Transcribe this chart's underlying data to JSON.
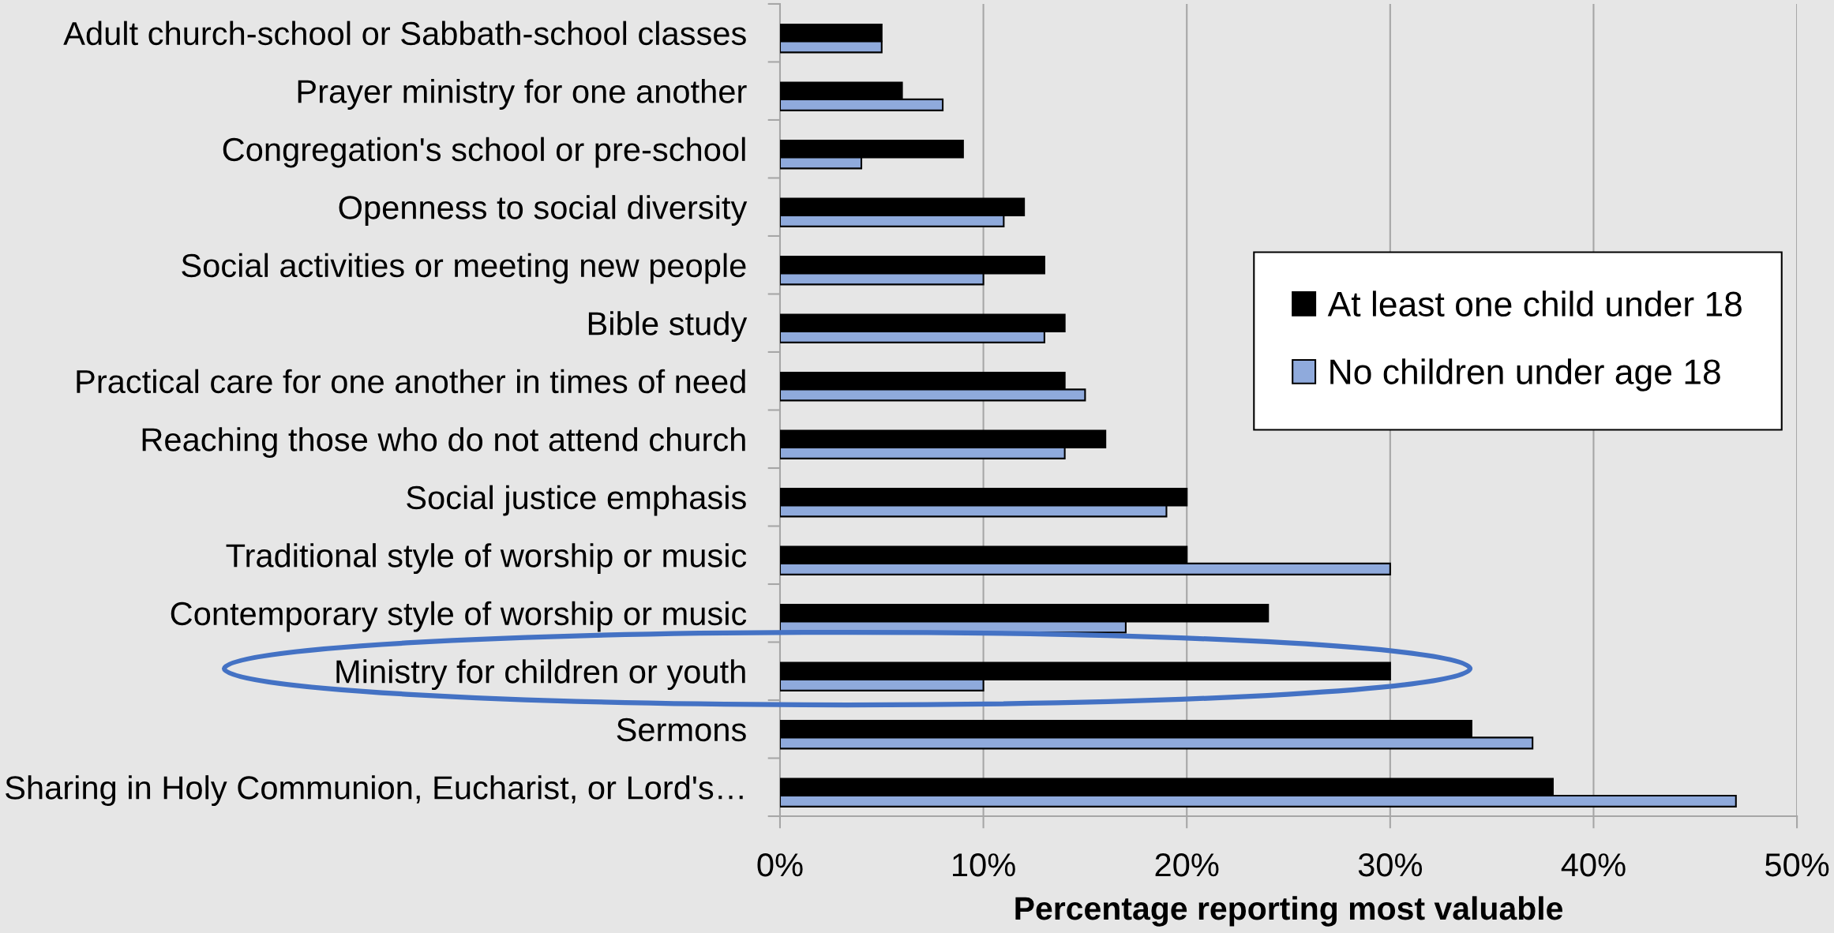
{
  "chart_data": {
    "type": "bar",
    "orientation": "horizontal",
    "categories": [
      "Adult church-school or Sabbath-school classes",
      "Prayer ministry for one another",
      "Congregation's school or pre-school",
      "Openness to social diversity",
      "Social activities or meeting new people",
      "Bible study",
      "Practical care for one another in times of need",
      "Reaching those who do not attend church",
      "Social justice emphasis",
      "Traditional style of worship or music",
      "Contemporary style of worship or music",
      "Ministry for children or youth",
      "Sermons",
      "Sharing in Holy Communion, Eucharist, or Lord's…"
    ],
    "series": [
      {
        "name": "At least one child under 18",
        "color": "#000000",
        "values": [
          5,
          6,
          9,
          12,
          13,
          14,
          14,
          16,
          20,
          20,
          24,
          30,
          34,
          38
        ]
      },
      {
        "name": "No children under age 18",
        "color": "#8faadc",
        "values": [
          5,
          8,
          4,
          11,
          10,
          13,
          15,
          14,
          19,
          30,
          17,
          10,
          37,
          47
        ]
      }
    ],
    "xlabel": "Percentage reporting most valuable",
    "xlim": [
      0,
      50
    ],
    "xticks": [
      {
        "value": 0,
        "label": "0%"
      },
      {
        "value": 10,
        "label": "10%"
      },
      {
        "value": 20,
        "label": "20%"
      },
      {
        "value": 30,
        "label": "30%"
      },
      {
        "value": 40,
        "label": "40%"
      },
      {
        "value": 50,
        "label": "50%"
      }
    ],
    "grid": "x",
    "legend": "right"
  }
}
